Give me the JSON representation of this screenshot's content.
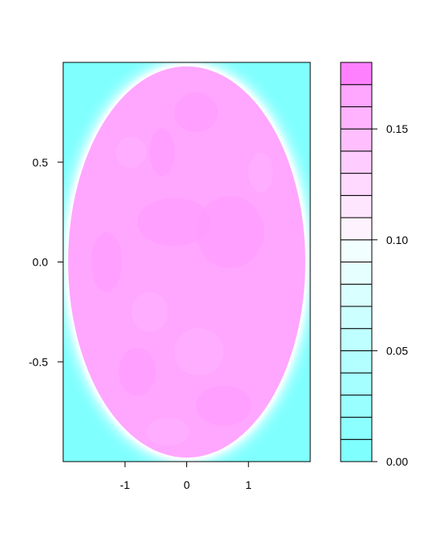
{
  "chart_data": {
    "type": "heatmap",
    "title": "",
    "xlabel": "",
    "ylabel": "",
    "xlim": [
      -2,
      2
    ],
    "ylim": [
      -1,
      1
    ],
    "x_ticks": [
      -1,
      0,
      1
    ],
    "x_tick_labels": [
      "-1",
      "0",
      "1"
    ],
    "y_ticks": [
      -0.5,
      0.0,
      0.5
    ],
    "y_tick_labels": [
      "-0.5",
      "0.0",
      "0.5"
    ],
    "region": "ellipse (x/2)^2 + y^2 <= 1",
    "value_inside_approx": 0.15,
    "value_outside": 0.0,
    "colorbar": {
      "range": [
        0.0,
        0.18
      ],
      "levels": [
        0.0,
        0.01,
        0.02,
        0.03,
        0.04,
        0.05,
        0.06,
        0.07,
        0.08,
        0.09,
        0.1,
        0.11,
        0.12,
        0.13,
        0.14,
        0.15,
        0.16,
        0.17,
        0.18
      ],
      "ticks": [
        0.0,
        0.05,
        0.1,
        0.15
      ],
      "tick_labels": [
        "0.00",
        "0.05",
        "0.10",
        "0.15"
      ],
      "colors": [
        "#80FFFF",
        "#8CFFFF",
        "#99FFFF",
        "#A6FFFF",
        "#B3FFFF",
        "#BFFFFF",
        "#CCFFFF",
        "#D9FFFF",
        "#E6FFFF",
        "#F2FFFF",
        "#FFF2FF",
        "#FFE6FF",
        "#FFD9FF",
        "#FFCCFF",
        "#FFBFFF",
        "#FFB3FF",
        "#FFA6FF",
        "#FF80FF"
      ]
    }
  }
}
